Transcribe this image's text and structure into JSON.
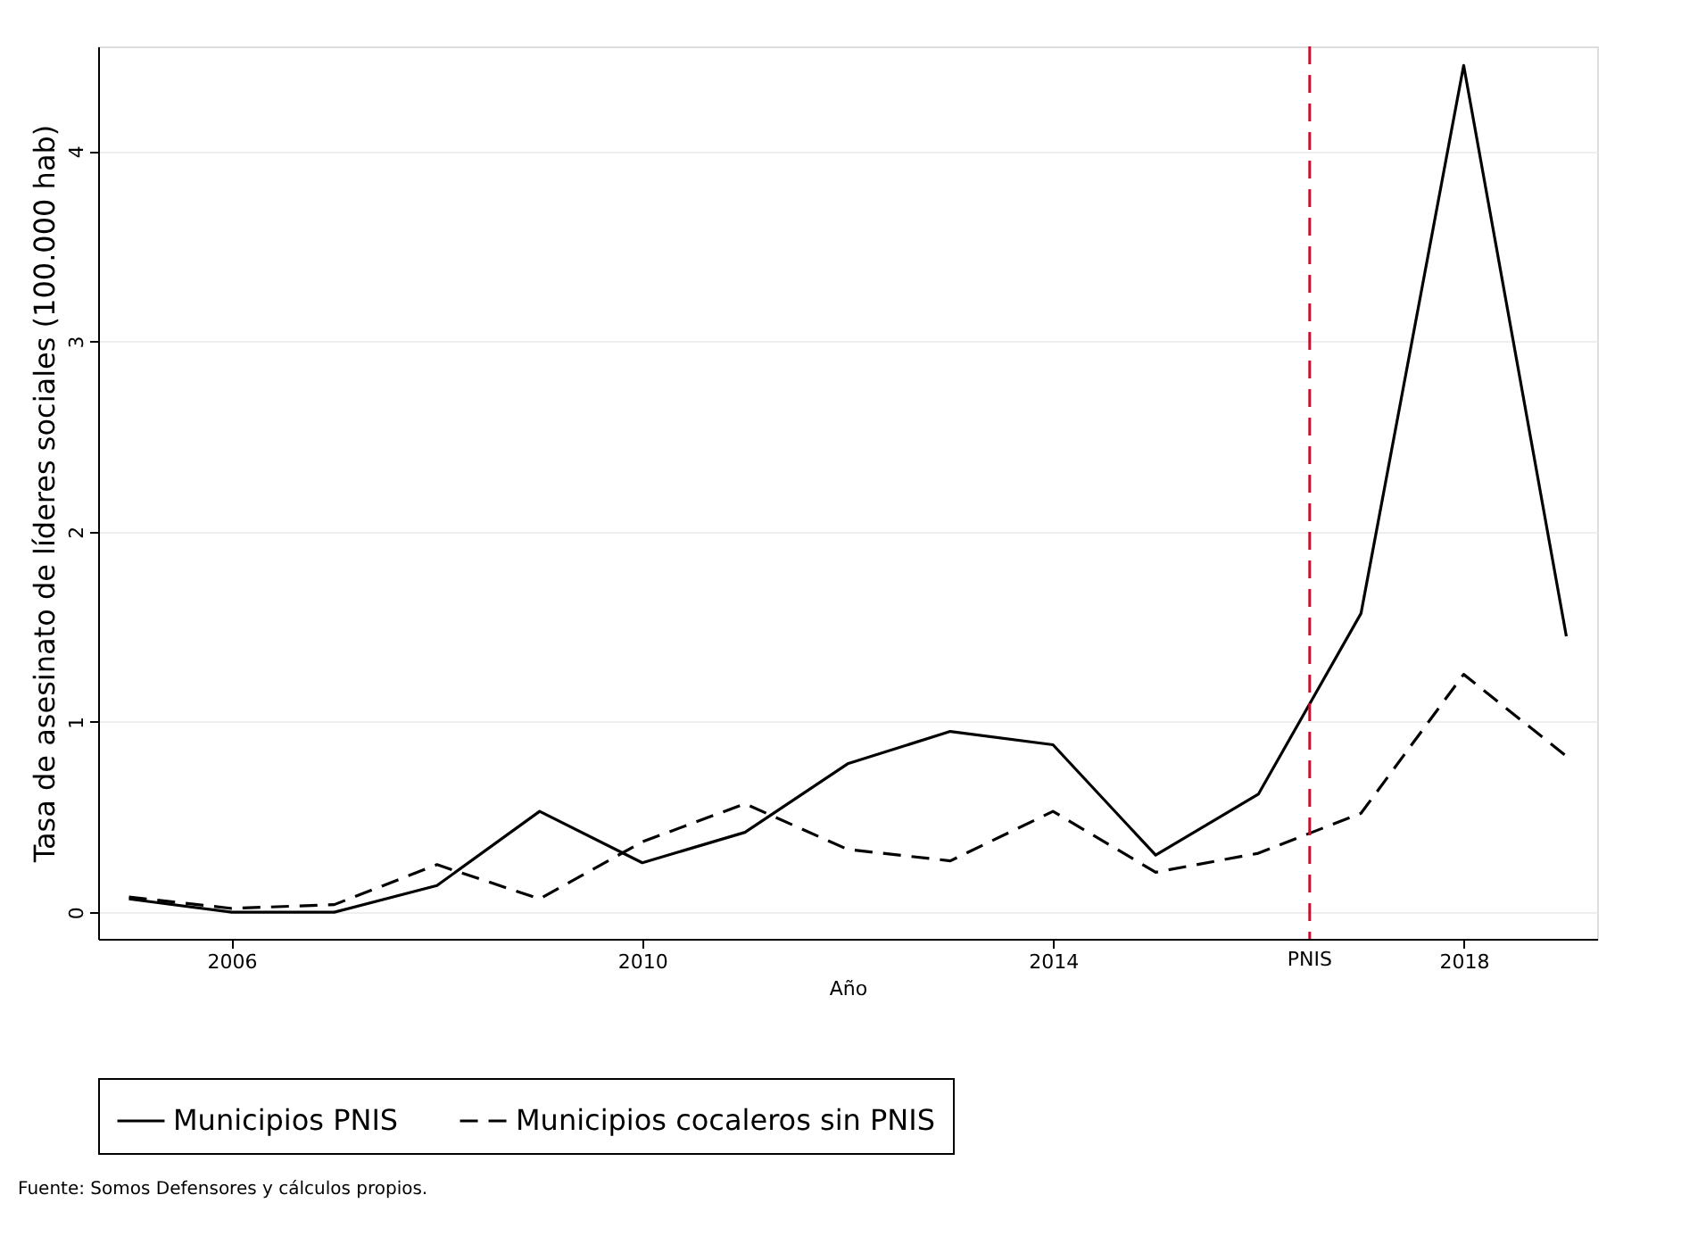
{
  "chart_data": {
    "type": "line",
    "xlabel": "Año",
    "ylabel": "Tasa de asesinato de líderes sociales (100.000 hab)",
    "x": [
      2005,
      2006,
      2007,
      2008,
      2009,
      2010,
      2011,
      2012,
      2013,
      2014,
      2015,
      2016,
      2017,
      2018,
      2019
    ],
    "series": [
      {
        "name": "Municipios PNIS",
        "color": "#000000",
        "line_style": "solid",
        "values": [
          0.07,
          0.0,
          0.0,
          0.14,
          0.53,
          0.26,
          0.42,
          0.78,
          0.95,
          0.88,
          0.3,
          0.62,
          1.57,
          4.45,
          1.45
        ]
      },
      {
        "name": "Municipios cocaleros sin PNIS",
        "color": "#000000",
        "line_style": "dashed",
        "values": [
          0.08,
          0.02,
          0.04,
          0.25,
          0.07,
          0.37,
          0.57,
          0.33,
          0.27,
          0.53,
          0.21,
          0.31,
          0.52,
          1.25,
          0.82
        ]
      }
    ],
    "xlim": [
      2004.7,
      2019.3
    ],
    "xticks": [
      2006,
      2010,
      2014,
      2018
    ],
    "ylim": [
      -0.14,
      4.55
    ],
    "yticks": [
      0,
      1,
      2,
      3,
      4
    ],
    "ref_lines": [
      {
        "axis": "x",
        "value": 2016.5,
        "label": "PNIS",
        "color": "#c8102e",
        "line_style": "dashed"
      }
    ],
    "grid": "y",
    "legend": "bottom",
    "marker": "none",
    "annotations": [
      "Fuente: Somos Defensores y cálculos propios."
    ]
  }
}
